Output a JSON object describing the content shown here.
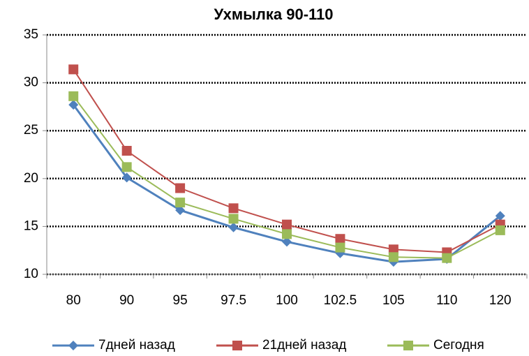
{
  "chart_data": {
    "type": "line",
    "title": "Ухмылка 90-110",
    "categories": [
      "80",
      "90",
      "95",
      "97.5",
      "100",
      "102.5",
      "105",
      "110",
      "120"
    ],
    "series": [
      {
        "name": "7дней назад",
        "color": "#4f81bd",
        "marker": "diamond",
        "values": [
          27.7,
          20.1,
          16.7,
          14.9,
          13.4,
          12.2,
          11.3,
          11.6,
          16.1
        ]
      },
      {
        "name": "21дней назад",
        "color": "#c0504d",
        "marker": "square",
        "values": [
          31.4,
          22.9,
          19.0,
          16.9,
          15.2,
          13.7,
          12.6,
          12.3,
          15.2
        ]
      },
      {
        "name": "Сегодня",
        "color": "#9bbb59",
        "marker": "square",
        "values": [
          28.6,
          21.2,
          17.5,
          15.8,
          14.2,
          12.8,
          11.8,
          11.7,
          14.6
        ]
      }
    ],
    "ylim": [
      10,
      35
    ],
    "yticks": [
      10,
      15,
      20,
      25,
      30,
      35
    ],
    "grid": true,
    "legend": "bottom"
  }
}
